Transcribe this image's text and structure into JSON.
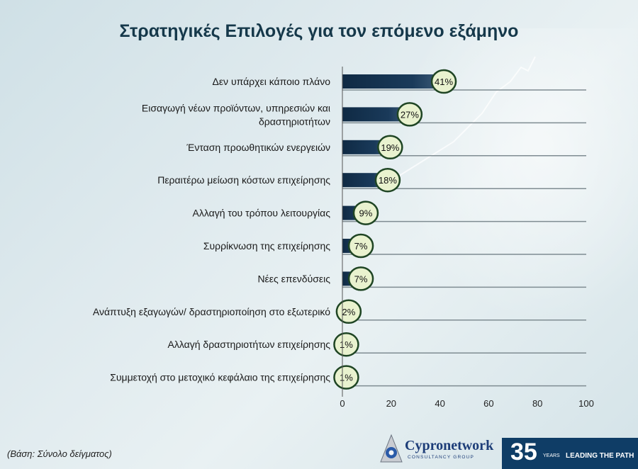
{
  "title": "Στρατηγικές Επιλογές για τον επόμενο εξάμηνο",
  "footnote": "(Βάση: Σύνολο δείγματος)",
  "chart_data": {
    "type": "bar",
    "orientation": "horizontal",
    "categories": [
      [
        "Δεν υπάρχει κάποιο πλάνο"
      ],
      [
        "Εισαγωγή νέων προϊόντων,  υπηρεσιών και",
        "δραστηριοτήτων"
      ],
      [
        "Ένταση προωθητικών ενεργειών"
      ],
      [
        "Περαιτέρω μείωση κόστων επιχείρησης"
      ],
      [
        "Αλλαγή του τρόπου λειτουργίας"
      ],
      [
        "Συρρίκνωση της επιχείρησης"
      ],
      [
        "Νέες επενδύσεις"
      ],
      [
        "Ανάπτυξη εξαγωγών/ δραστηριοποίηση στο εξωτερικό"
      ],
      [
        "Αλλαγή δραστηριοτήτων επιχείρησης"
      ],
      [
        "Συμμετοχή στο μετοχικό κεφάλαιο της επιχείρησης"
      ]
    ],
    "values": [
      41,
      27,
      19,
      18,
      9,
      7,
      7,
      2,
      1,
      1
    ],
    "value_labels": [
      "41%",
      "27%",
      "19%",
      "18%",
      "9%",
      "7%",
      "7%",
      "2%",
      "1%",
      "1%"
    ],
    "xlim": [
      0,
      100
    ],
    "xticks": [
      0,
      20,
      40,
      60,
      80,
      100
    ],
    "xtick_labels": [
      "0",
      "20",
      "40",
      "60",
      "80",
      "100"
    ],
    "bar_color": "#14324f",
    "label_bubble_fill": "#e9f2cf",
    "label_bubble_stroke": "#1f4524"
  },
  "branding": {
    "company": "Cypronetwork",
    "company_sub": "CONSULTANCY GROUP",
    "years_num": "35",
    "years_word": "YEARS",
    "slogan": "LEADING THE PATH"
  }
}
